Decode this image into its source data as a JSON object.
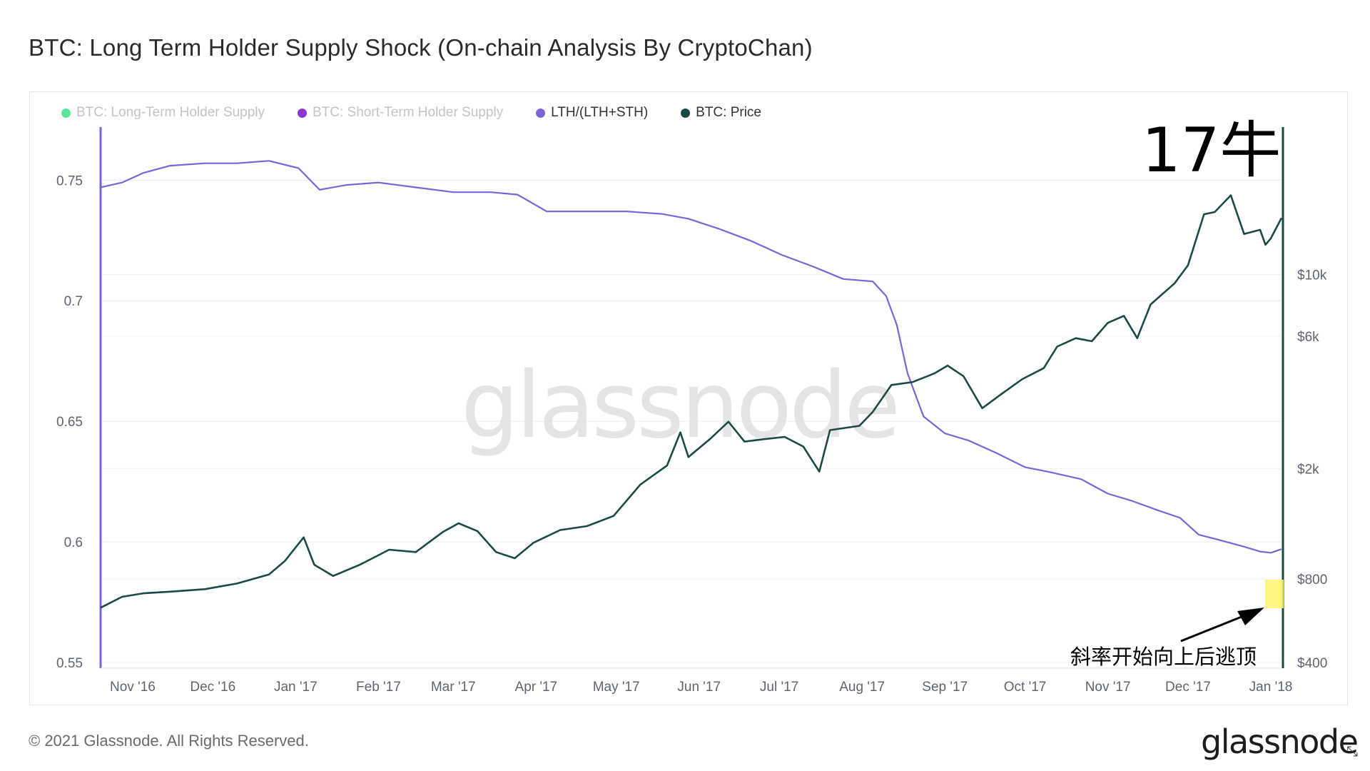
{
  "title": "BTC: Long Term Holder Supply Shock (On-chain Analysis By CryptoChan)",
  "footer": "© 2021 Glassnode. All Rights Reserved.",
  "logo": "glassnode",
  "watermark": "glassnode",
  "icons": {
    "expand": "expand-icon"
  },
  "colors": {
    "lth_supply": "#3ee38a",
    "sth_supply": "#7a12c7",
    "ratio": "#7b63d9",
    "price": "#1b4a45",
    "highlight": "#fff36a"
  },
  "legend": [
    {
      "label": "BTC: Long-Term Holder Supply",
      "color": "#3ee38a",
      "active": false
    },
    {
      "label": "BTC: Short-Term Holder Supply",
      "color": "#7a12c7",
      "active": false
    },
    {
      "label": "LTH/(LTH+STH)",
      "color": "#7b63d9",
      "active": true
    },
    {
      "label": "BTC: Price",
      "color": "#1b4a45",
      "active": true
    }
  ],
  "annotations": {
    "big_label": "17牛",
    "arrow_note": "斜率开始向上后逃顶"
  },
  "chart_data": {
    "type": "line",
    "xlabel": "",
    "x_ticks": [
      "Nov '16",
      "Dec '16",
      "Jan '17",
      "Feb '17",
      "Mar '17",
      "Apr '17",
      "May '17",
      "Jun '17",
      "Jul '17",
      "Aug '17",
      "Sep '17",
      "Oct '17",
      "Nov '17",
      "Dec '17",
      "Jan '18"
    ],
    "x_range": [
      "2016-10-20",
      "2018-01-05"
    ],
    "y_left": {
      "label": "",
      "ticks": [
        "0.55",
        "0.6",
        "0.65",
        "0.7",
        "0.75"
      ],
      "range": [
        0.55,
        0.772
      ]
    },
    "y_right": {
      "label": "",
      "scale": "log",
      "ticks": [
        "$400",
        "$800",
        "$2k",
        "$6k",
        "$10k"
      ],
      "range": [
        400,
        34000
      ]
    },
    "grid": true,
    "legend_position": "top-left",
    "series": [
      {
        "name": "LTH/(LTH+STH)",
        "axis": "left",
        "points": [
          [
            "2016-10-20",
            0.747
          ],
          [
            "2016-10-28",
            0.749
          ],
          [
            "2016-11-05",
            0.753
          ],
          [
            "2016-11-15",
            0.756
          ],
          [
            "2016-11-28",
            0.757
          ],
          [
            "2016-12-10",
            0.757
          ],
          [
            "2016-12-22",
            0.758
          ],
          [
            "2017-01-02",
            0.755
          ],
          [
            "2017-01-10",
            0.746
          ],
          [
            "2017-01-20",
            0.748
          ],
          [
            "2017-02-01",
            0.749
          ],
          [
            "2017-02-15",
            0.747
          ],
          [
            "2017-03-01",
            0.745
          ],
          [
            "2017-03-15",
            0.745
          ],
          [
            "2017-03-25",
            0.744
          ],
          [
            "2017-04-05",
            0.737
          ],
          [
            "2017-04-20",
            0.737
          ],
          [
            "2017-05-05",
            0.737
          ],
          [
            "2017-05-18",
            0.736
          ],
          [
            "2017-05-28",
            0.734
          ],
          [
            "2017-06-08",
            0.73
          ],
          [
            "2017-06-20",
            0.725
          ],
          [
            "2017-07-02",
            0.719
          ],
          [
            "2017-07-14",
            0.714
          ],
          [
            "2017-07-25",
            0.709
          ],
          [
            "2017-08-05",
            0.708
          ],
          [
            "2017-08-10",
            0.702
          ],
          [
            "2017-08-14",
            0.69
          ],
          [
            "2017-08-18",
            0.67
          ],
          [
            "2017-08-24",
            0.652
          ],
          [
            "2017-09-01",
            0.645
          ],
          [
            "2017-09-10",
            0.642
          ],
          [
            "2017-09-20",
            0.637
          ],
          [
            "2017-10-01",
            0.631
          ],
          [
            "2017-10-10",
            0.629
          ],
          [
            "2017-10-22",
            0.626
          ],
          [
            "2017-11-01",
            0.62
          ],
          [
            "2017-11-10",
            0.617
          ],
          [
            "2017-11-20",
            0.613
          ],
          [
            "2017-11-28",
            0.61
          ],
          [
            "2017-12-05",
            0.603
          ],
          [
            "2017-12-12",
            0.601
          ],
          [
            "2017-12-22",
            0.598
          ],
          [
            "2017-12-28",
            0.596
          ],
          [
            "2018-01-01",
            0.5955
          ],
          [
            "2018-01-05",
            0.597
          ]
        ]
      },
      {
        "name": "BTC: Price",
        "axis": "right",
        "points": [
          [
            "2016-10-20",
            630
          ],
          [
            "2016-10-28",
            690
          ],
          [
            "2016-11-05",
            710
          ],
          [
            "2016-11-15",
            720
          ],
          [
            "2016-11-28",
            735
          ],
          [
            "2016-12-10",
            770
          ],
          [
            "2016-12-22",
            830
          ],
          [
            "2016-12-28",
            930
          ],
          [
            "2017-01-04",
            1130
          ],
          [
            "2017-01-08",
            900
          ],
          [
            "2017-01-15",
            820
          ],
          [
            "2017-01-25",
            900
          ],
          [
            "2017-02-05",
            1020
          ],
          [
            "2017-02-15",
            1000
          ],
          [
            "2017-02-25",
            1180
          ],
          [
            "2017-03-03",
            1270
          ],
          [
            "2017-03-10",
            1190
          ],
          [
            "2017-03-17",
            1000
          ],
          [
            "2017-03-24",
            950
          ],
          [
            "2017-03-31",
            1080
          ],
          [
            "2017-04-10",
            1200
          ],
          [
            "2017-04-20",
            1240
          ],
          [
            "2017-04-30",
            1350
          ],
          [
            "2017-05-10",
            1750
          ],
          [
            "2017-05-20",
            2050
          ],
          [
            "2017-05-25",
            2700
          ],
          [
            "2017-05-28",
            2200
          ],
          [
            "2017-06-05",
            2550
          ],
          [
            "2017-06-12",
            2950
          ],
          [
            "2017-06-18",
            2500
          ],
          [
            "2017-06-25",
            2550
          ],
          [
            "2017-07-03",
            2600
          ],
          [
            "2017-07-10",
            2400
          ],
          [
            "2017-07-16",
            1950
          ],
          [
            "2017-07-20",
            2750
          ],
          [
            "2017-07-31",
            2850
          ],
          [
            "2017-08-05",
            3200
          ],
          [
            "2017-08-12",
            4000
          ],
          [
            "2017-08-20",
            4100
          ],
          [
            "2017-08-28",
            4400
          ],
          [
            "2017-09-02",
            4700
          ],
          [
            "2017-09-08",
            4300
          ],
          [
            "2017-09-15",
            3300
          ],
          [
            "2017-09-22",
            3700
          ],
          [
            "2017-09-30",
            4200
          ],
          [
            "2017-10-08",
            4600
          ],
          [
            "2017-10-13",
            5500
          ],
          [
            "2017-10-20",
            5900
          ],
          [
            "2017-10-26",
            5750
          ],
          [
            "2017-11-01",
            6700
          ],
          [
            "2017-11-07",
            7100
          ],
          [
            "2017-11-12",
            5900
          ],
          [
            "2017-11-17",
            7800
          ],
          [
            "2017-11-26",
            9300
          ],
          [
            "2017-12-01",
            10800
          ],
          [
            "2017-12-07",
            16500
          ],
          [
            "2017-12-11",
            16800
          ],
          [
            "2017-12-17",
            19300
          ],
          [
            "2017-12-22",
            14000
          ],
          [
            "2017-12-28",
            14500
          ],
          [
            "2017-12-30",
            12800
          ],
          [
            "2018-01-01",
            13500
          ],
          [
            "2018-01-05",
            16000
          ]
        ]
      }
    ]
  }
}
